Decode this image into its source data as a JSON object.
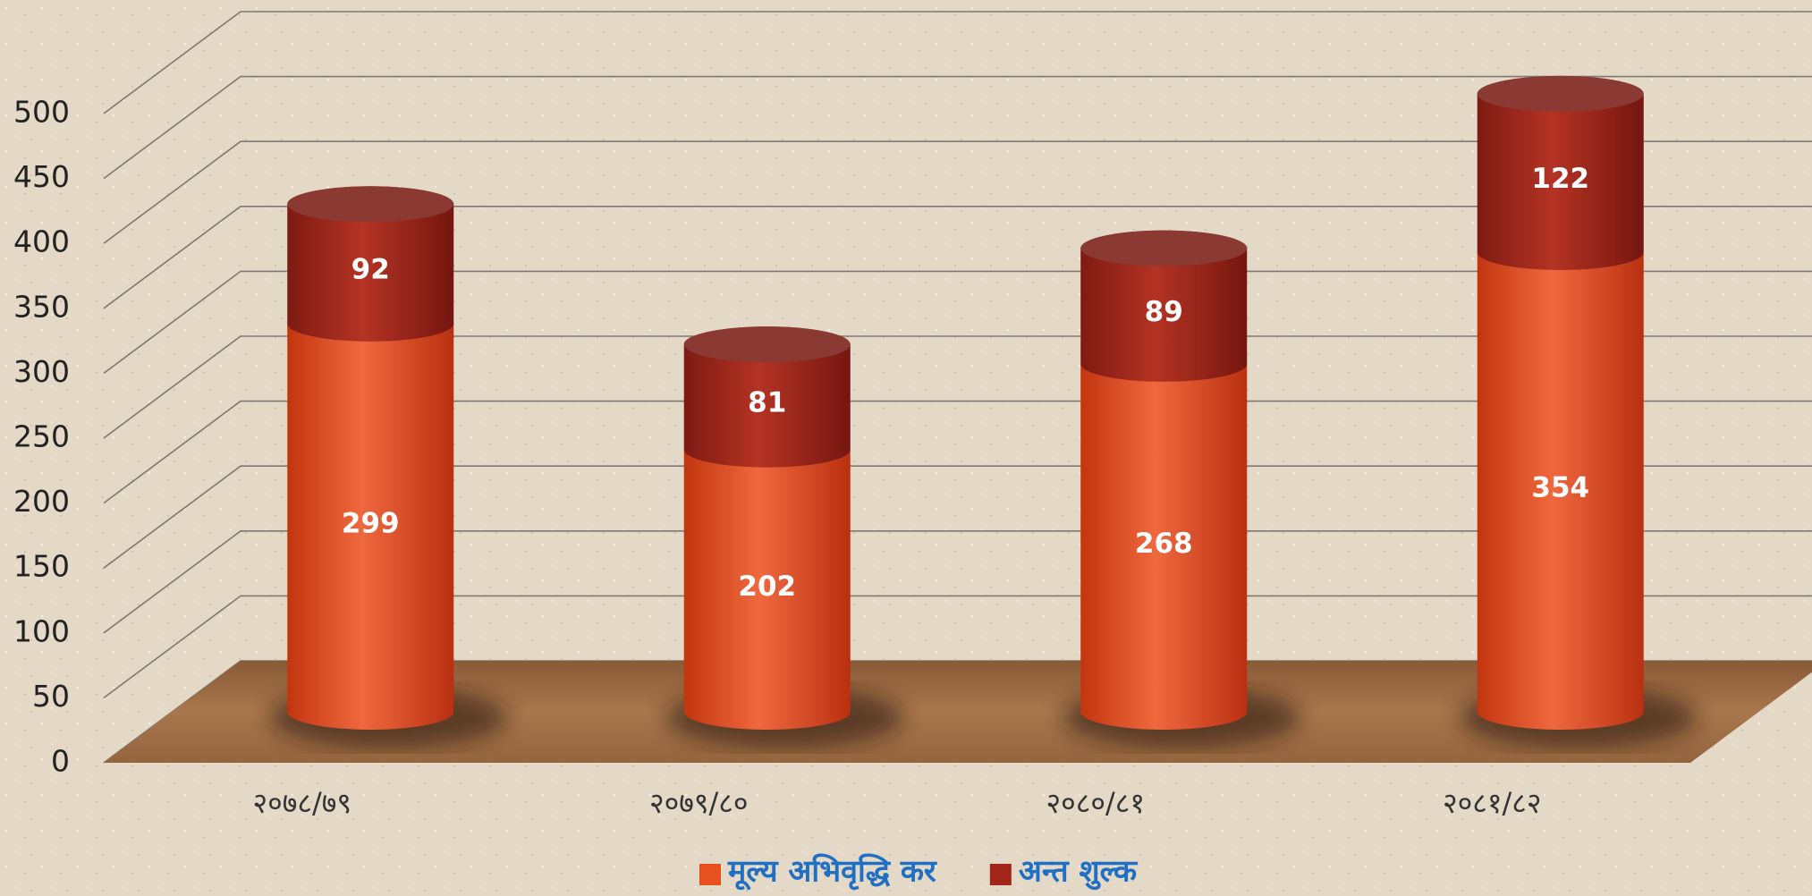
{
  "chart_data": {
    "type": "bar3d-stacked-cylinder",
    "categories": [
      "२०७८/७९",
      "२०७९/८०",
      "२०८०/८१",
      "२०८१/८२"
    ],
    "series": [
      {
        "name": "मूल्य अभिवृद्धि कर",
        "color": "#e8501f",
        "values": [
          299,
          202,
          268,
          354
        ]
      },
      {
        "name": "अन्त शुल्क",
        "color": "#a3261b",
        "values": [
          92,
          81,
          89,
          122
        ]
      }
    ],
    "ylim": [
      0,
      500
    ],
    "yticks": [
      0,
      50,
      100,
      150,
      200,
      250,
      300,
      350,
      400,
      450,
      500
    ],
    "grid": true
  }
}
